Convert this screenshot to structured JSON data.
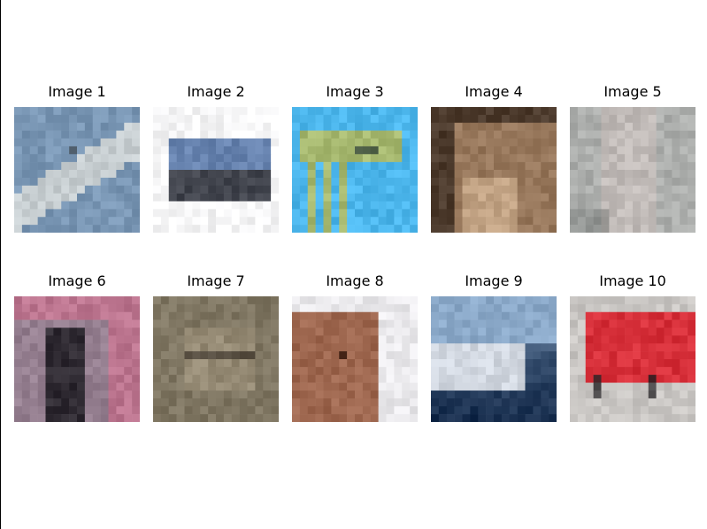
{
  "grid": [
    {
      "title": "Image 1",
      "picture": "pixelated airplane against pale blue sky",
      "palette": {
        "bg": "#7493b2",
        "fg": "#d0d4d4",
        "dark": "#3a4650"
      }
    },
    {
      "title": "Image 2",
      "picture": "pixelated blue car on white background",
      "palette": {
        "bg": "#f7f7f8",
        "fg": "#5877a8",
        "dark": "#222630"
      }
    },
    {
      "title": "Image 3",
      "picture": "pixelated yellow-green bird on bright blue sky",
      "palette": {
        "bg": "#4cb6ec",
        "fg": "#b7b95a",
        "dark": "#2c3c38"
      }
    },
    {
      "title": "Image 4",
      "picture": "pixelated brown cat indoors",
      "palette": {
        "bg": "#8a6a4e",
        "fg": "#c7a889",
        "dark": "#2c2018"
      }
    },
    {
      "title": "Image 5",
      "picture": "pixelated grey animal in blurry light scene",
      "palette": {
        "bg": "#a5aaa8",
        "fg": "#d3c7c2",
        "dark": "#6c6f6d"
      }
    },
    {
      "title": "Image 6",
      "picture": "pixelated dark animal among pink flowers",
      "palette": {
        "bg": "#8e8190",
        "fg": "#d0708e",
        "dark": "#1e1c22"
      }
    },
    {
      "title": "Image 7",
      "picture": "pixelated brown dog close up",
      "palette": {
        "bg": "#7b725e",
        "fg": "#a79a82",
        "dark": "#3a3228"
      }
    },
    {
      "title": "Image 8",
      "picture": "pixelated brown horse head on light background",
      "palette": {
        "bg": "#eae9ec",
        "fg": "#96583d",
        "dark": "#3c2218"
      }
    },
    {
      "title": "Image 9",
      "picture": "pixelated white ship on dark blue sea",
      "palette": {
        "bg": "#8aa8c8",
        "fg": "#d6dbe2",
        "dark": "#122848"
      }
    },
    {
      "title": "Image 10",
      "picture": "pixelated red truck on light ground",
      "palette": {
        "bg": "#c9c6c3",
        "fg": "#d82833",
        "dark": "#2c2a2c"
      }
    }
  ]
}
